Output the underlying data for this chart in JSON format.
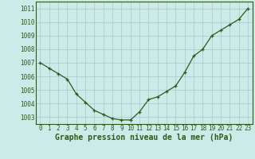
{
  "x": [
    0,
    1,
    2,
    3,
    4,
    5,
    6,
    7,
    8,
    9,
    10,
    11,
    12,
    13,
    14,
    15,
    16,
    17,
    18,
    19,
    20,
    21,
    22,
    23
  ],
  "y": [
    1007.0,
    1006.6,
    1006.2,
    1005.8,
    1004.7,
    1004.1,
    1003.5,
    1003.2,
    1002.9,
    1002.8,
    1002.8,
    1003.4,
    1004.3,
    1004.5,
    1004.9,
    1005.3,
    1006.3,
    1007.5,
    1008.0,
    1009.0,
    1009.4,
    1009.8,
    1010.2,
    1011.0
  ],
  "bg_color": "#cceae7",
  "grid_color": "#aacfcc",
  "line_color": "#2d5a1b",
  "marker_color": "#2d5a1b",
  "xlabel": "Graphe pression niveau de la mer (hPa)",
  "xlim": [
    -0.5,
    23.5
  ],
  "ylim": [
    1002.5,
    1011.5
  ],
  "yticks": [
    1003,
    1004,
    1005,
    1006,
    1007,
    1008,
    1009,
    1010,
    1011
  ],
  "xticks": [
    0,
    1,
    2,
    3,
    4,
    5,
    6,
    7,
    8,
    9,
    10,
    11,
    12,
    13,
    14,
    15,
    16,
    17,
    18,
    19,
    20,
    21,
    22,
    23
  ],
  "tick_fontsize": 5.5,
  "xlabel_fontsize": 7.0,
  "xlabel_fontweight": "bold"
}
